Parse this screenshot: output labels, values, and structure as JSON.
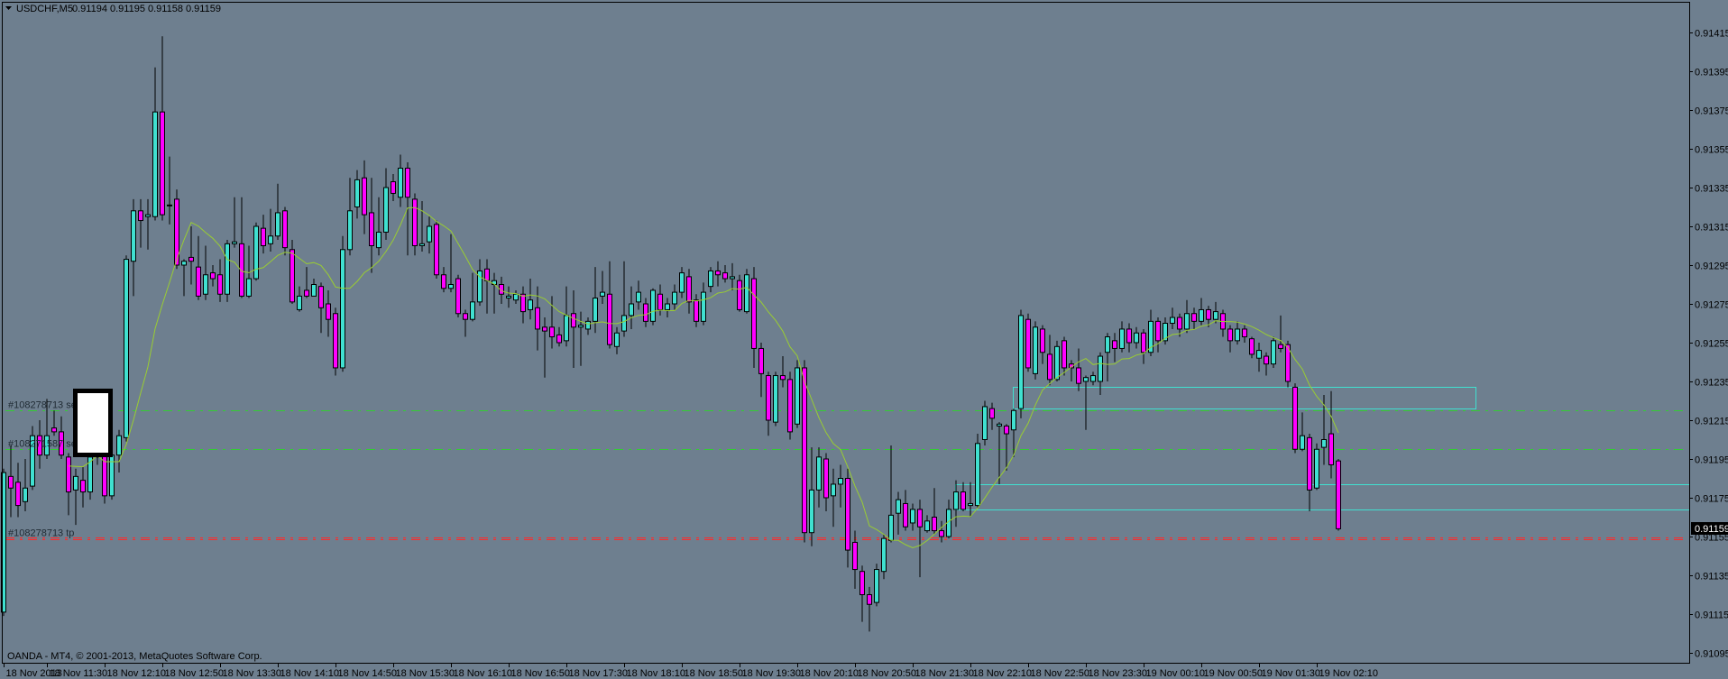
{
  "header": {
    "symbol": "USDCHF,M5",
    "ohlc": "0.91194 0.91195 0.91158 0.91159"
  },
  "footer": "OANDA - MT4, © 2001-2013, MetaQuotes Software Corp.",
  "colors": {
    "background": "#6e7f8f",
    "bull": "#40e0d0",
    "bear": "#ff00ff",
    "outline": "#000000",
    "moving_average": "#9acd32",
    "sell_line": "#32cd32",
    "tp_line": "#ff2a2a",
    "rectangle": "#40e0d0"
  },
  "chart_data": {
    "type": "candlestick",
    "title": "USDCHF,M5",
    "ylim": [
      0.91095,
      0.91415
    ],
    "y_ticks": [
      "0.91415",
      "0.91395",
      "0.91375",
      "0.91355",
      "0.91335",
      "0.91315",
      "0.91295",
      "0.91275",
      "0.91255",
      "0.91235",
      "0.91215",
      "0.91195",
      "0.91175",
      "0.91155",
      "0.91135",
      "0.91115",
      "0.91095"
    ],
    "x_ticks": [
      "18 Nov 2013",
      "18 Nov 11:30",
      "18 Nov 12:10",
      "18 Nov 12:50",
      "18 Nov 13:30",
      "18 Nov 14:10",
      "18 Nov 14:50",
      "18 Nov 15:30",
      "18 Nov 16:10",
      "18 Nov 16:50",
      "18 Nov 17:30",
      "18 Nov 18:10",
      "18 Nov 18:50",
      "18 Nov 19:30",
      "18 Nov 20:10",
      "18 Nov 20:50",
      "18 Nov 21:30",
      "18 Nov 22:10",
      "18 Nov 22:50",
      "18 Nov 23:30",
      "19 Nov 00:10",
      "19 Nov 00:50",
      "19 Nov 01:30",
      "19 Nov 02:10"
    ],
    "grid": false,
    "current_price": "0.91159",
    "indicator": "moving average",
    "candles_ohlc": [
      [
        0.91116,
        0.9119,
        0.91114,
        0.91188
      ],
      [
        0.91186,
        0.91202,
        0.91165,
        0.9118
      ],
      [
        0.91183,
        0.91193,
        0.91165,
        0.91171
      ],
      [
        0.91173,
        0.91195,
        0.91168,
        0.9118
      ],
      [
        0.91181,
        0.91212,
        0.91179,
        0.91207
      ],
      [
        0.91207,
        0.91215,
        0.9119,
        0.91197
      ],
      [
        0.91197,
        0.91226,
        0.91195,
        0.91207
      ],
      [
        0.91211,
        0.9122,
        0.91207,
        0.91209
      ],
      [
        0.91209,
        0.91217,
        0.91195,
        0.91197
      ],
      [
        0.91196,
        0.91198,
        0.91166,
        0.91178
      ],
      [
        0.91179,
        0.9119,
        0.91161,
        0.91186
      ],
      [
        0.91184,
        0.91191,
        0.9117,
        0.91178
      ],
      [
        0.91178,
        0.912,
        0.91174,
        0.91196
      ],
      [
        0.91196,
        0.91214,
        0.91192,
        0.91212
      ],
      [
        0.91212,
        0.91216,
        0.91172,
        0.91176
      ],
      [
        0.91176,
        0.912,
        0.91174,
        0.91197
      ],
      [
        0.91197,
        0.9121,
        0.91188,
        0.91207
      ],
      [
        0.91206,
        0.913,
        0.91204,
        0.91298
      ],
      [
        0.91297,
        0.91329,
        0.91279,
        0.91323
      ],
      [
        0.91323,
        0.91329,
        0.91304,
        0.91318
      ],
      [
        0.9132,
        0.91329,
        0.91303,
        0.91321
      ],
      [
        0.9132,
        0.91397,
        0.91318,
        0.91374
      ],
      [
        0.91374,
        0.91413,
        0.91318,
        0.91321
      ],
      [
        0.91326,
        0.91351,
        0.91316,
        0.91326
      ],
      [
        0.91329,
        0.91334,
        0.91293,
        0.91295
      ],
      [
        0.91295,
        0.91298,
        0.91279,
        0.91297
      ],
      [
        0.91299,
        0.91315,
        0.91285,
        0.91297
      ],
      [
        0.91294,
        0.9131,
        0.91277,
        0.91279
      ],
      [
        0.9128,
        0.91305,
        0.91277,
        0.9129
      ],
      [
        0.91291,
        0.91295,
        0.91284,
        0.91288
      ],
      [
        0.9129,
        0.91298,
        0.91276,
        0.9128
      ],
      [
        0.9128,
        0.91308,
        0.91276,
        0.91306
      ],
      [
        0.91306,
        0.9133,
        0.91304,
        0.91307
      ],
      [
        0.91306,
        0.9133,
        0.91278,
        0.91279
      ],
      [
        0.91279,
        0.91305,
        0.91278,
        0.91288
      ],
      [
        0.91288,
        0.91317,
        0.91287,
        0.91315
      ],
      [
        0.91314,
        0.91321,
        0.91301,
        0.91305
      ],
      [
        0.91306,
        0.91324,
        0.91302,
        0.9131
      ],
      [
        0.9131,
        0.91337,
        0.91308,
        0.91322
      ],
      [
        0.91323,
        0.91325,
        0.913,
        0.91304
      ],
      [
        0.91303,
        0.91308,
        0.91275,
        0.91276
      ],
      [
        0.91272,
        0.91284,
        0.91271,
        0.91279
      ],
      [
        0.91282,
        0.91294,
        0.91278,
        0.91279
      ],
      [
        0.91279,
        0.91288,
        0.91279,
        0.91285
      ],
      [
        0.91284,
        0.91286,
        0.9126,
        0.91273
      ],
      [
        0.91275,
        0.91282,
        0.91258,
        0.91267
      ],
      [
        0.9127,
        0.91273,
        0.91238,
        0.91242
      ],
      [
        0.91242,
        0.9131,
        0.9124,
        0.91303
      ],
      [
        0.91303,
        0.9134,
        0.913,
        0.91323
      ],
      [
        0.91325,
        0.91344,
        0.91319,
        0.91339
      ],
      [
        0.9134,
        0.91349,
        0.91311,
        0.91321
      ],
      [
        0.91322,
        0.9134,
        0.91291,
        0.91305
      ],
      [
        0.91304,
        0.9133,
        0.913,
        0.91312
      ],
      [
        0.91312,
        0.91345,
        0.91308,
        0.91335
      ],
      [
        0.91338,
        0.91342,
        0.91328,
        0.91332
      ],
      [
        0.9133,
        0.91352,
        0.91325,
        0.91345
      ],
      [
        0.91345,
        0.91348,
        0.913,
        0.9133
      ],
      [
        0.91329,
        0.91332,
        0.913,
        0.91305
      ],
      [
        0.91305,
        0.91328,
        0.91302,
        0.91306
      ],
      [
        0.91307,
        0.9132,
        0.91301,
        0.91315
      ],
      [
        0.91316,
        0.91318,
        0.91288,
        0.9129
      ],
      [
        0.9129,
        0.91294,
        0.91281,
        0.91283
      ],
      [
        0.91283,
        0.91311,
        0.91281,
        0.91285
      ],
      [
        0.91288,
        0.9129,
        0.91268,
        0.9127
      ],
      [
        0.9127,
        0.91272,
        0.91258,
        0.91267
      ],
      [
        0.91267,
        0.91291,
        0.91266,
        0.91276
      ],
      [
        0.91276,
        0.91298,
        0.91274,
        0.91292
      ],
      [
        0.91293,
        0.91298,
        0.9127,
        0.91287
      ],
      [
        0.91285,
        0.91291,
        0.9127,
        0.91287
      ],
      [
        0.91285,
        0.91289,
        0.91275,
        0.9128
      ],
      [
        0.91278,
        0.91284,
        0.91273,
        0.91279
      ],
      [
        0.91277,
        0.91282,
        0.91275,
        0.9128
      ],
      [
        0.9128,
        0.91284,
        0.91265,
        0.91271
      ],
      [
        0.91272,
        0.91288,
        0.91267,
        0.91277
      ],
      [
        0.91273,
        0.91284,
        0.91251,
        0.91262
      ],
      [
        0.91263,
        0.91268,
        0.91237,
        0.91261
      ],
      [
        0.91263,
        0.91279,
        0.91252,
        0.91258
      ],
      [
        0.91259,
        0.91263,
        0.91253,
        0.91255
      ],
      [
        0.91256,
        0.91284,
        0.91253,
        0.91269
      ],
      [
        0.9127,
        0.91282,
        0.91242,
        0.91263
      ],
      [
        0.91263,
        0.91271,
        0.91243,
        0.91264
      ],
      [
        0.91262,
        0.91268,
        0.91259,
        0.91266
      ],
      [
        0.91266,
        0.91294,
        0.9126,
        0.91278
      ],
      [
        0.91279,
        0.91292,
        0.91275,
        0.91281
      ],
      [
        0.9128,
        0.91297,
        0.91252,
        0.91254
      ],
      [
        0.91253,
        0.91263,
        0.91249,
        0.9126
      ],
      [
        0.91261,
        0.91297,
        0.91258,
        0.91269
      ],
      [
        0.91269,
        0.91284,
        0.91262,
        0.91275
      ],
      [
        0.91276,
        0.91287,
        0.91272,
        0.91281
      ],
      [
        0.91275,
        0.91278,
        0.91263,
        0.91266
      ],
      [
        0.91266,
        0.91283,
        0.91264,
        0.91282
      ],
      [
        0.9128,
        0.91285,
        0.91269,
        0.91272
      ],
      [
        0.91272,
        0.91278,
        0.91268,
        0.91275
      ],
      [
        0.91275,
        0.91285,
        0.91272,
        0.91281
      ],
      [
        0.91281,
        0.91294,
        0.91278,
        0.91291
      ],
      [
        0.91289,
        0.91293,
        0.9127,
        0.91276
      ],
      [
        0.91277,
        0.9128,
        0.91263,
        0.91266
      ],
      [
        0.91266,
        0.91286,
        0.91264,
        0.91281
      ],
      [
        0.91284,
        0.91294,
        0.91281,
        0.91292
      ],
      [
        0.91292,
        0.91297,
        0.91284,
        0.9129
      ],
      [
        0.91291,
        0.91295,
        0.91286,
        0.91288
      ],
      [
        0.91288,
        0.91296,
        0.91282,
        0.91289
      ],
      [
        0.91287,
        0.9129,
        0.91271,
        0.91272
      ],
      [
        0.91271,
        0.91293,
        0.9127,
        0.9129
      ],
      [
        0.91288,
        0.91294,
        0.91242,
        0.91252
      ],
      [
        0.91252,
        0.91255,
        0.91227,
        0.91239
      ],
      [
        0.91238,
        0.9124,
        0.91207,
        0.91215
      ],
      [
        0.91214,
        0.9124,
        0.91212,
        0.91238
      ],
      [
        0.91238,
        0.91248,
        0.91232,
        0.91236
      ],
      [
        0.91236,
        0.9124,
        0.91205,
        0.91209
      ],
      [
        0.91213,
        0.91246,
        0.91211,
        0.91242
      ],
      [
        0.91242,
        0.91246,
        0.91152,
        0.91157
      ],
      [
        0.91157,
        0.91201,
        0.9115,
        0.91179
      ],
      [
        0.91179,
        0.91201,
        0.9117,
        0.91196
      ],
      [
        0.91195,
        0.91198,
        0.91168,
        0.91175
      ],
      [
        0.91176,
        0.9119,
        0.9116,
        0.91182
      ],
      [
        0.91182,
        0.91192,
        0.9117,
        0.91185
      ],
      [
        0.91185,
        0.9119,
        0.91139,
        0.91148
      ],
      [
        0.91152,
        0.91158,
        0.91128,
        0.91138
      ],
      [
        0.91137,
        0.9114,
        0.91111,
        0.91125
      ],
      [
        0.91125,
        0.91129,
        0.91106,
        0.9112
      ],
      [
        0.91121,
        0.91141,
        0.91119,
        0.91138
      ],
      [
        0.91137,
        0.91156,
        0.91133,
        0.91154
      ],
      [
        0.91153,
        0.91202,
        0.91152,
        0.91166
      ],
      [
        0.91167,
        0.91178,
        0.91156,
        0.91174
      ],
      [
        0.91172,
        0.91179,
        0.91158,
        0.9116
      ],
      [
        0.91162,
        0.91172,
        0.91158,
        0.91169
      ],
      [
        0.91169,
        0.91174,
        0.91134,
        0.9116
      ],
      [
        0.91158,
        0.91166,
        0.91157,
        0.91163
      ],
      [
        0.91165,
        0.9118,
        0.91156,
        0.91158
      ],
      [
        0.91158,
        0.91163,
        0.91152,
        0.91155
      ],
      [
        0.91155,
        0.91174,
        0.91154,
        0.91169
      ],
      [
        0.91169,
        0.91184,
        0.9116,
        0.91178
      ],
      [
        0.91178,
        0.91183,
        0.91168,
        0.91169
      ],
      [
        0.91171,
        0.91183,
        0.91165,
        0.91172
      ],
      [
        0.91171,
        0.91208,
        0.9117,
        0.91203
      ],
      [
        0.91205,
        0.91225,
        0.91202,
        0.91222
      ],
      [
        0.91221,
        0.91224,
        0.9121,
        0.91216
      ],
      [
        0.91212,
        0.91214,
        0.91182,
        0.91213
      ],
      [
        0.91212,
        0.91213,
        0.91189,
        0.91208
      ],
      [
        0.9121,
        0.91221,
        0.91196,
        0.9122
      ],
      [
        0.91221,
        0.91272,
        0.91216,
        0.91269
      ],
      [
        0.91267,
        0.9127,
        0.9124,
        0.91242
      ],
      [
        0.91239,
        0.91266,
        0.91236,
        0.91263
      ],
      [
        0.91262,
        0.91264,
        0.91244,
        0.9125
      ],
      [
        0.91249,
        0.91259,
        0.91233,
        0.91236
      ],
      [
        0.91236,
        0.91256,
        0.91235,
        0.91253
      ],
      [
        0.91256,
        0.91258,
        0.91238,
        0.91242
      ],
      [
        0.91244,
        0.91246,
        0.91235,
        0.91242
      ],
      [
        0.91242,
        0.91252,
        0.9123,
        0.91234
      ],
      [
        0.91235,
        0.91238,
        0.9121,
        0.91237
      ],
      [
        0.91235,
        0.9124,
        0.91233,
        0.91238
      ],
      [
        0.91235,
        0.9125,
        0.91228,
        0.91248
      ],
      [
        0.9125,
        0.9126,
        0.91235,
        0.91258
      ],
      [
        0.91256,
        0.9126,
        0.91245,
        0.91252
      ],
      [
        0.91252,
        0.91266,
        0.9125,
        0.91262
      ],
      [
        0.91262,
        0.91265,
        0.9125,
        0.91255
      ],
      [
        0.91255,
        0.91263,
        0.91252,
        0.9126
      ],
      [
        0.9126,
        0.91262,
        0.91244,
        0.9125
      ],
      [
        0.9125,
        0.91272,
        0.91248,
        0.91266
      ],
      [
        0.91266,
        0.91268,
        0.9125,
        0.91256
      ],
      [
        0.91256,
        0.91268,
        0.91254,
        0.91265
      ],
      [
        0.91265,
        0.91273,
        0.91262,
        0.91268
      ],
      [
        0.91268,
        0.9127,
        0.91258,
        0.91262
      ],
      [
        0.91262,
        0.91277,
        0.9126,
        0.9127
      ],
      [
        0.9127,
        0.91273,
        0.91262,
        0.91266
      ],
      [
        0.91266,
        0.91278,
        0.91264,
        0.91272
      ],
      [
        0.91272,
        0.91274,
        0.91263,
        0.91267
      ],
      [
        0.91267,
        0.91276,
        0.91265,
        0.91271
      ],
      [
        0.9127,
        0.91272,
        0.91258,
        0.91262
      ],
      [
        0.91262,
        0.91264,
        0.9125,
        0.91256
      ],
      [
        0.91256,
        0.91266,
        0.91254,
        0.91262
      ],
      [
        0.91262,
        0.91264,
        0.91255,
        0.91258
      ],
      [
        0.91257,
        0.91258,
        0.91247,
        0.91249
      ],
      [
        0.91247,
        0.91255,
        0.9124,
        0.91251
      ],
      [
        0.91248,
        0.9125,
        0.91238,
        0.91244
      ],
      [
        0.91244,
        0.91258,
        0.91242,
        0.91256
      ],
      [
        0.91254,
        0.91269,
        0.9125,
        0.91252
      ],
      [
        0.91254,
        0.91256,
        0.91232,
        0.91235
      ],
      [
        0.91232,
        0.91234,
        0.91198,
        0.912
      ],
      [
        0.912,
        0.91219,
        0.91199,
        0.91207
      ],
      [
        0.91206,
        0.91208,
        0.91168,
        0.91179
      ],
      [
        0.9118,
        0.91203,
        0.91179,
        0.912
      ],
      [
        0.91201,
        0.91228,
        0.91192,
        0.91205
      ],
      [
        0.91208,
        0.9123,
        0.91185,
        0.91192
      ],
      [
        0.91194,
        0.91195,
        0.91158,
        0.91159
      ]
    ],
    "trade_lines": [
      {
        "label": "#108278713 sell",
        "price": 0.9122,
        "kind": "sell"
      },
      {
        "label": "#108271587 sell",
        "price": 0.912,
        "kind": "sell"
      },
      {
        "label": "#108278713 tp",
        "price": 0.91154,
        "kind": "tp"
      }
    ],
    "zones": [
      {
        "top": 0.91232,
        "bottom": 0.91221
      },
      {
        "top": 0.91182,
        "bottom": 0.91169
      }
    ]
  }
}
